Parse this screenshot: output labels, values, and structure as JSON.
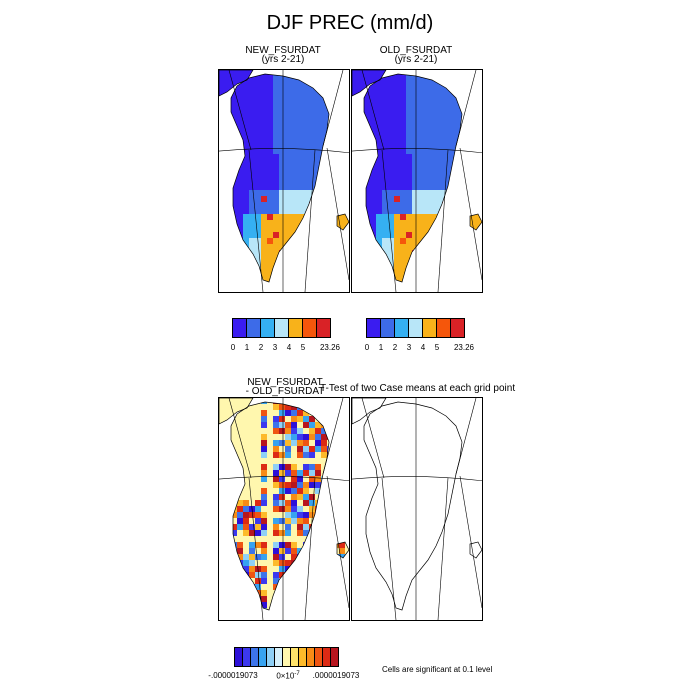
{
  "page_title": "DJF PREC (mm/d)",
  "panels": {
    "new": {
      "title": "NEW_FSURDAT",
      "subtitle": "(yrs 2-21)"
    },
    "old": {
      "title": "OLD_FSURDAT",
      "subtitle": "(yrs 2-21)"
    },
    "diff": {
      "title_line1": "NEW_FSURDAT",
      "title_line2": "- OLD_FSURDAT",
      "test_label": "T-Test of two Case means at each grid point"
    }
  },
  "precip_colorbar": {
    "colors": [
      "#3a1cf0",
      "#3d6be8",
      "#35b0f2",
      "#b8e6f8",
      "#f8b21a",
      "#f5560b",
      "#d92226"
    ],
    "labels": [
      "0",
      "1",
      "2",
      "3",
      "4",
      "5",
      "23.26"
    ]
  },
  "diff_colorbar": {
    "colors": [
      "#2d10d8",
      "#3c38ee",
      "#3d74ea",
      "#37a3f0",
      "#8fd0f6",
      "#d6f0fb",
      "#fff7ae",
      "#ffe36a",
      "#fdba2a",
      "#f88b16",
      "#ef5512",
      "#dc2a14",
      "#b7151e"
    ],
    "label_left": "-.0000019073",
    "label_mid": "0×10",
    "label_mid_exp": "-7",
    "label_right": ".0000019073"
  },
  "significance_note": "Cells are significant at 0.1 level"
}
